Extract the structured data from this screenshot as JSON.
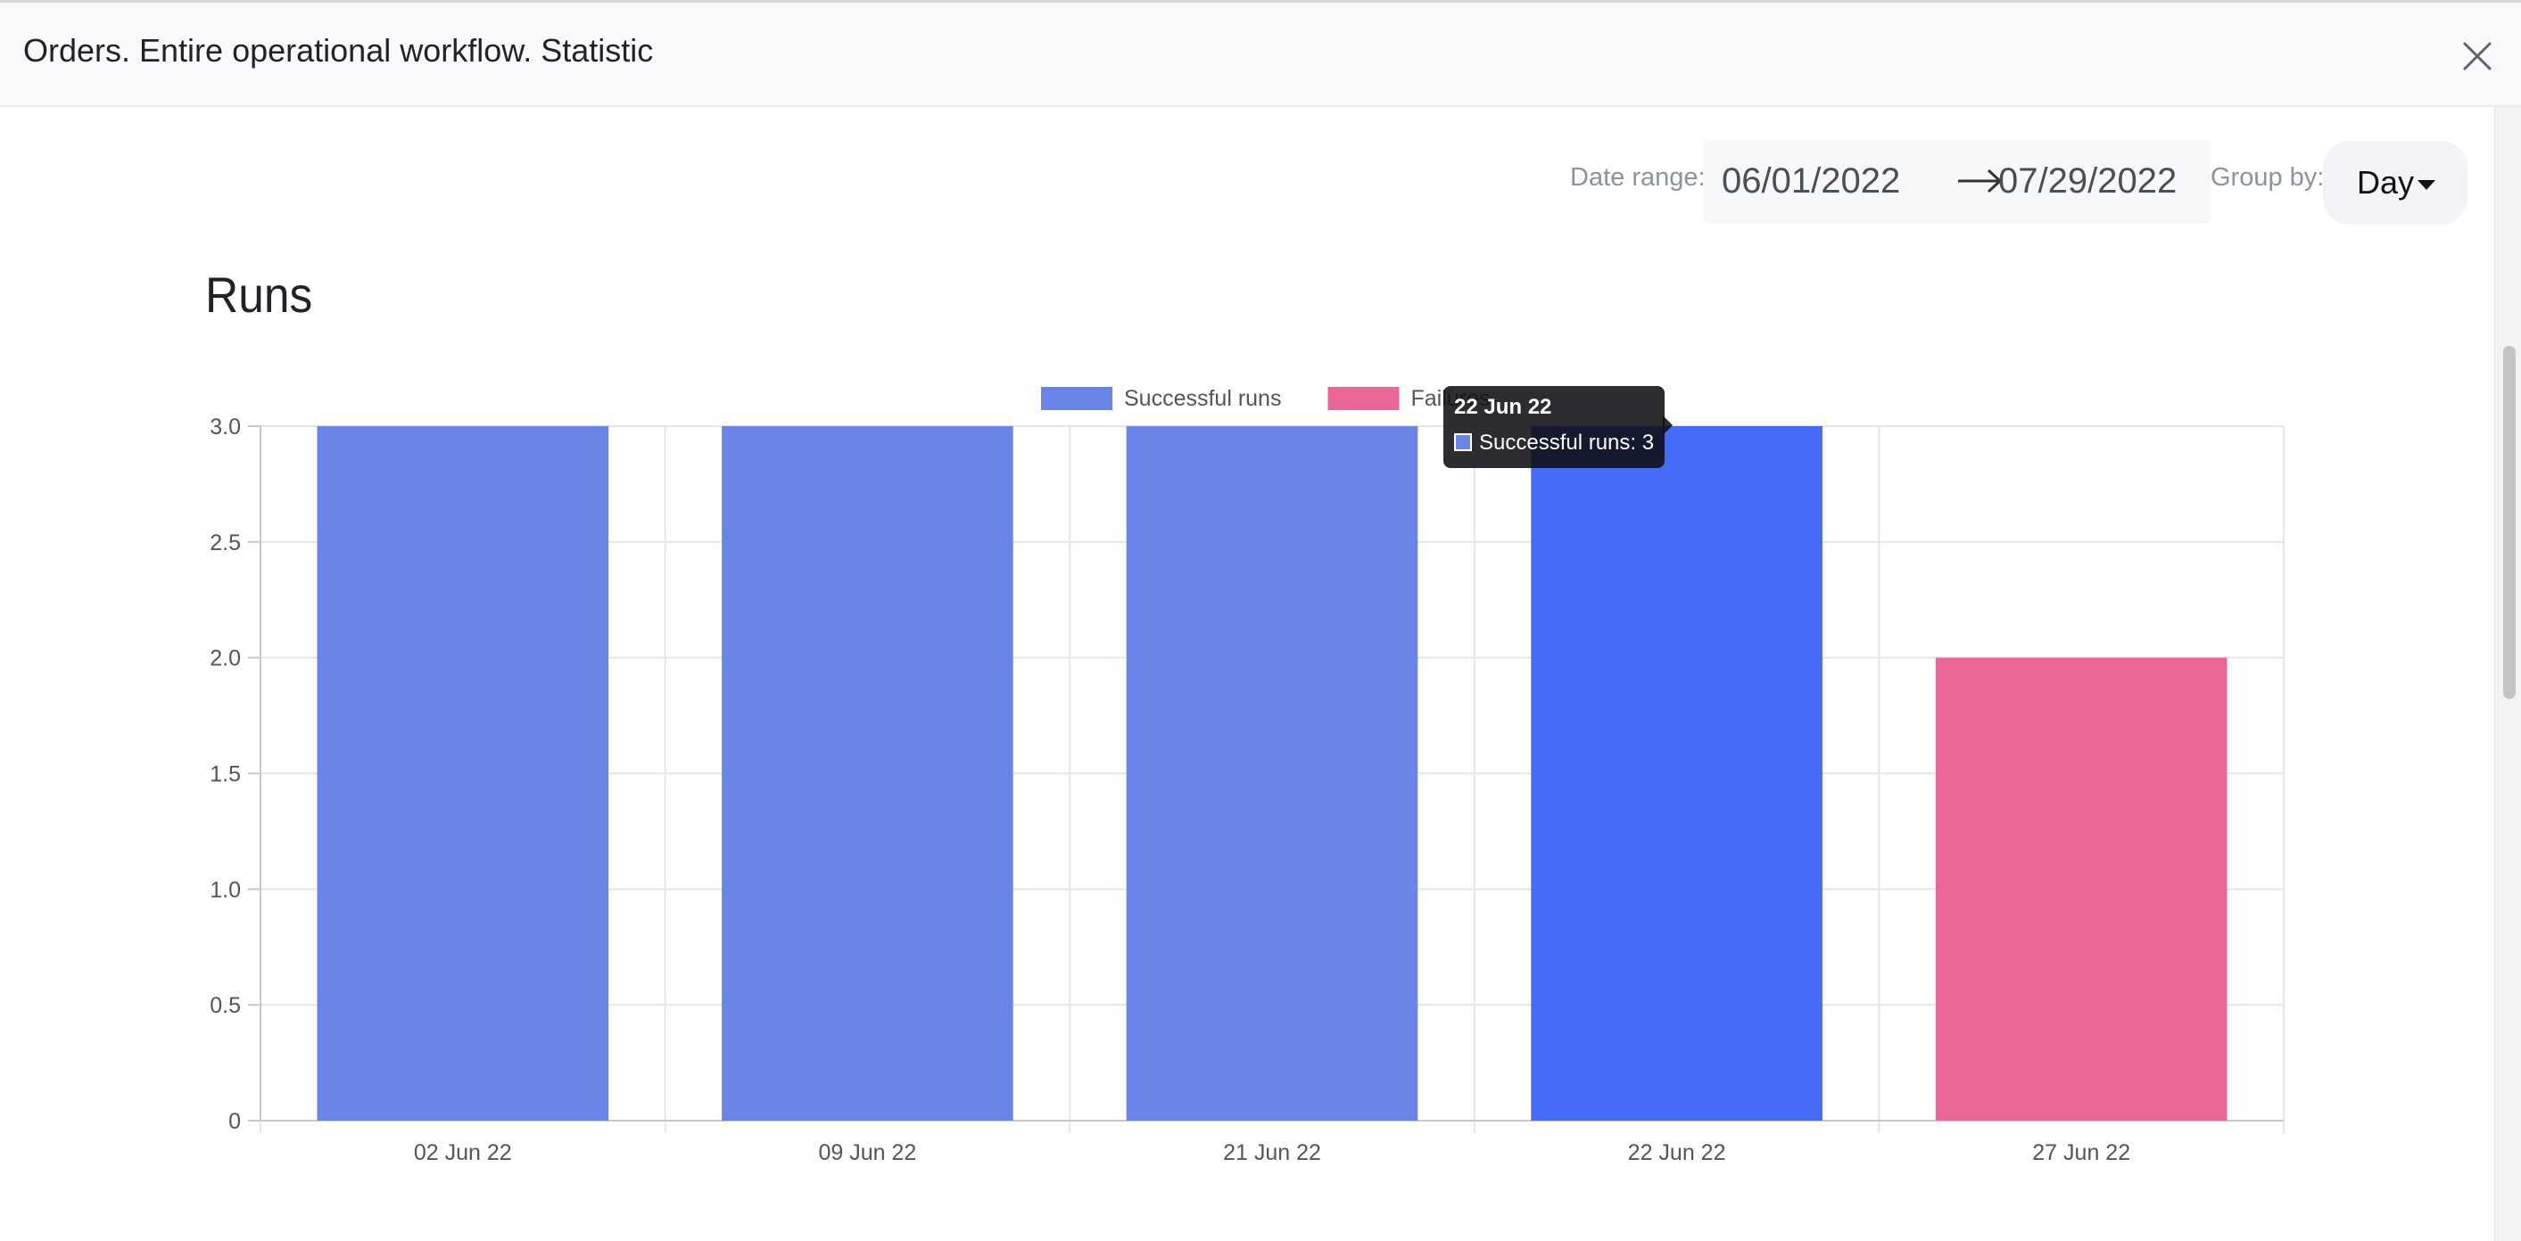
{
  "header": {
    "title": "Orders. Entire operational workflow. Statistic"
  },
  "toolbar": {
    "date_range_label": "Date range:",
    "date_from": "06/01/2022",
    "date_to": "07/29/2022",
    "group_by_label": "Group by:",
    "group_by_value": "Day"
  },
  "section": {
    "title": "Runs"
  },
  "colors": {
    "successful": "#6b84e8",
    "successful_hover": "#456bf7",
    "failures": "#ea6699",
    "grid": "#e6e6e6"
  },
  "icons": {
    "close": "close-icon",
    "arrow": "arrow-right-icon",
    "caret": "caret-down-icon"
  },
  "tooltip": {
    "title": "22 Jun 22",
    "text": "Successful runs: 3"
  },
  "chart_data": {
    "type": "bar",
    "title": "",
    "xlabel": "",
    "ylabel": "",
    "categories": [
      "02 Jun 22",
      "09 Jun 22",
      "21 Jun 22",
      "22 Jun 22",
      "27 Jun 22"
    ],
    "series": [
      {
        "name": "Successful runs",
        "values": [
          3,
          3,
          3,
          3,
          0
        ]
      },
      {
        "name": "Failures",
        "values": [
          0,
          0,
          0,
          0,
          2
        ]
      }
    ],
    "highlighted": {
      "category": "22 Jun 22",
      "series": "Successful runs"
    },
    "ylim": [
      0,
      3
    ],
    "yticks": [
      0,
      0.5,
      1.0,
      1.5,
      2.0,
      2.5,
      3.0
    ],
    "ytick_labels": [
      "0",
      "0.5",
      "1.0",
      "1.5",
      "2.0",
      "2.5",
      "3.0"
    ],
    "grid": true,
    "stacked": true,
    "legend_position": "top-center"
  }
}
